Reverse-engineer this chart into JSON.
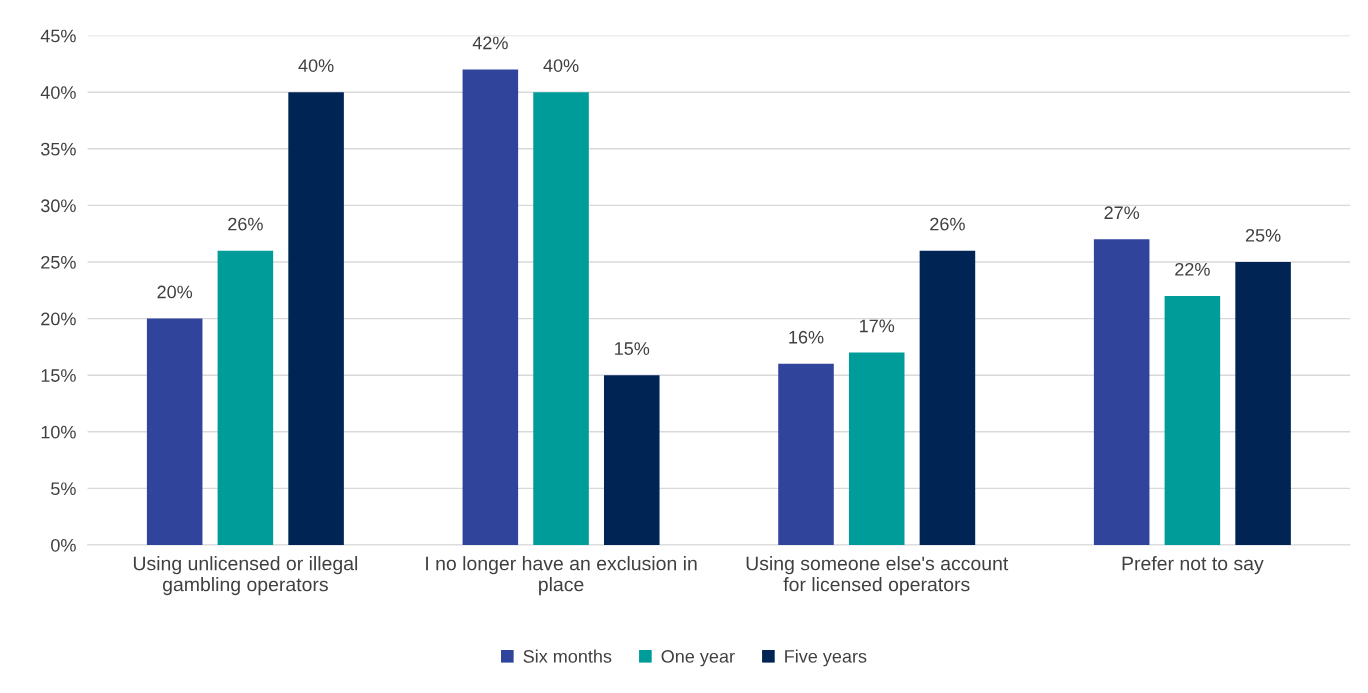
{
  "chart_data": {
    "type": "bar",
    "categories": [
      "Using unlicensed or illegal\ngambling operators",
      "I no longer have an exclusion in\nplace",
      "Using someone else's account\nfor licensed operators",
      "Prefer not to say"
    ],
    "series": [
      {
        "name": "Six months",
        "color": "#31449c",
        "values": [
          20,
          42,
          16,
          27
        ],
        "value_labels": [
          "20%",
          "42%",
          "16%",
          "27%"
        ]
      },
      {
        "name": "One year",
        "color": "#009c9a",
        "values": [
          26,
          40,
          17,
          22
        ],
        "value_labels": [
          "26%",
          "40%",
          "17%",
          "22%"
        ]
      },
      {
        "name": "Five years",
        "color": "#002554",
        "values": [
          40,
          15,
          26,
          25
        ],
        "value_labels": [
          "40%",
          "15%",
          "26%",
          "25%"
        ]
      }
    ],
    "ylim": [
      0,
      45
    ],
    "yticks": [
      {
        "value": 0,
        "label": "0%"
      },
      {
        "value": 5,
        "label": "5%"
      },
      {
        "value": 10,
        "label": "10%"
      },
      {
        "value": 15,
        "label": "15%"
      },
      {
        "value": 20,
        "label": "20%"
      },
      {
        "value": 25,
        "label": "25%"
      },
      {
        "value": 30,
        "label": "30%"
      },
      {
        "value": 35,
        "label": "35%"
      },
      {
        "value": 40,
        "label": "40%"
      },
      {
        "value": 45,
        "label": "45%"
      }
    ],
    "grid": "y",
    "legend": "bottom"
  }
}
